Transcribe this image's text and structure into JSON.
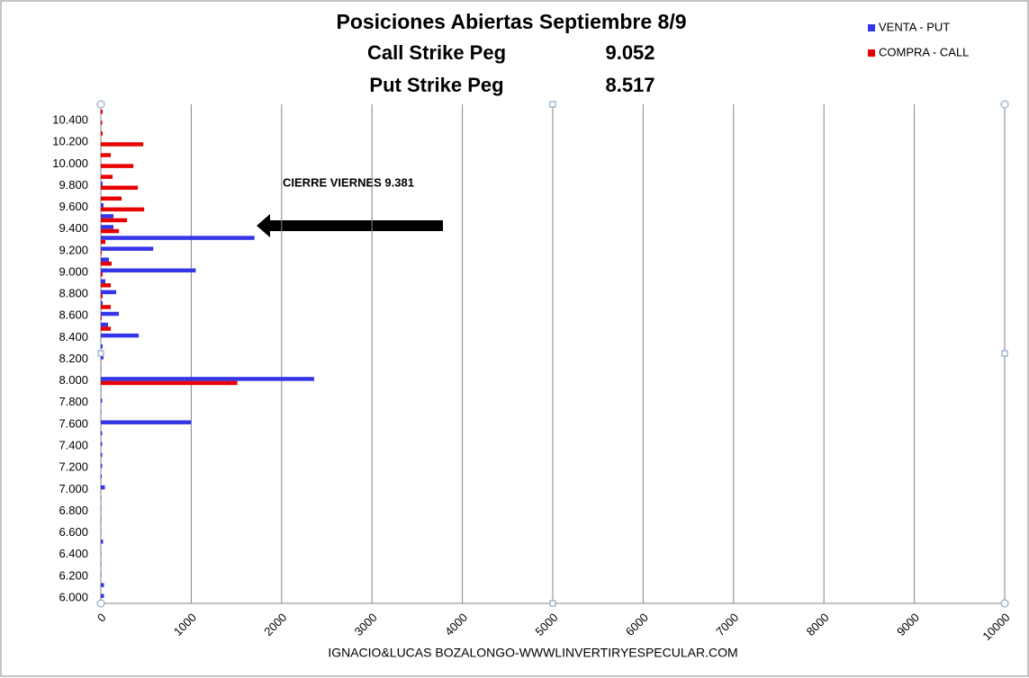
{
  "chart_data": {
    "type": "hbar",
    "title": "Posiciones Abiertas Septiembre 8/9",
    "pegs": [
      {
        "label": "Call Strike Peg",
        "value": 9.052
      },
      {
        "label": "Put Strike Peg",
        "value": 8.517
      }
    ],
    "annotation": "CIERRE VIERNES 9.381",
    "footer": "IGNACIO&LUCAS BOZALONGO-WWWLINVERTIRYESPECULAR.COM",
    "categories": [
      "6.000",
      null,
      "6.200",
      null,
      "6.400",
      null,
      "6.600",
      null,
      "6.800",
      null,
      "7.000",
      null,
      "7.200",
      null,
      "7.400",
      null,
      "7.600",
      null,
      "7.800",
      null,
      "8.000",
      null,
      "8.200",
      null,
      "8.400",
      null,
      "8.600",
      null,
      "8.800",
      null,
      "9.000",
      null,
      "9.200",
      null,
      "9.400",
      null,
      "9.600",
      null,
      "9.800",
      null,
      "10.000",
      null,
      "10.200",
      null,
      "10.400",
      null
    ],
    "series": [
      {
        "name": "VENTA - PUT",
        "color": "#3535e8",
        "values": [
          35,
          35,
          5,
          5,
          5,
          25,
          5,
          5,
          5,
          5,
          45,
          10,
          15,
          15,
          15,
          15,
          1000,
          5,
          15,
          5,
          2360,
          5,
          30,
          20,
          420,
          80,
          200,
          20,
          170,
          50,
          1050,
          90,
          580,
          1700,
          140,
          140,
          30,
          0,
          20,
          0,
          0,
          0,
          0,
          0,
          0,
          0
        ]
      },
      {
        "name": "COMPRA - CALL",
        "color": "#e80000",
        "values": [
          0,
          0,
          0,
          0,
          0,
          0,
          0,
          0,
          0,
          0,
          0,
          0,
          0,
          0,
          0,
          0,
          0,
          0,
          0,
          0,
          1510,
          0,
          5,
          0,
          0,
          110,
          10,
          110,
          20,
          110,
          20,
          120,
          10,
          50,
          200,
          290,
          480,
          230,
          410,
          130,
          360,
          110,
          470,
          20,
          15,
          20
        ]
      }
    ],
    "xlim": [
      0,
      10000
    ],
    "xticks": [
      0,
      1000,
      2000,
      3000,
      4000,
      5000,
      6000,
      7000,
      8000,
      9000,
      10000
    ],
    "grid": true,
    "legend": "top-right"
  }
}
